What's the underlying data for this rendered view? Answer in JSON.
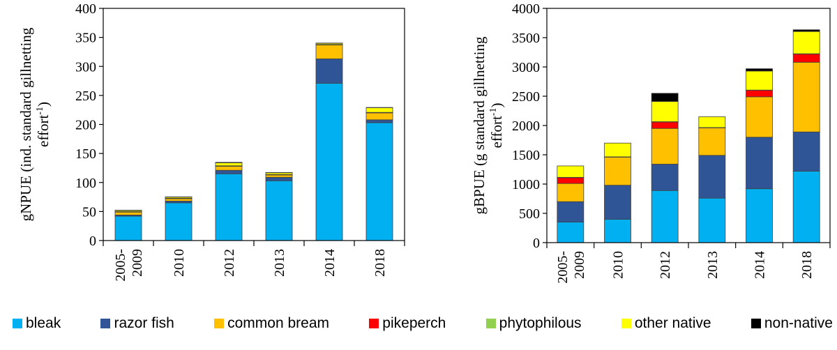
{
  "chart_data": [
    {
      "type": "bar",
      "stacked": true,
      "ylabel_lines": [
        "gNPUE (ind. standard gillnetting",
        "effort"
      ],
      "ylabel_superscript": "-1",
      "ylabel_close": ")",
      "ylim": [
        0,
        400
      ],
      "yticks": [
        0,
        50,
        100,
        150,
        200,
        250,
        300,
        350,
        400
      ],
      "categories": [
        [
          "2005-",
          "2009"
        ],
        [
          "2010"
        ],
        [
          "2012"
        ],
        [
          "2013"
        ],
        [
          "2014"
        ],
        [
          "2018"
        ]
      ],
      "series": [
        {
          "name": "bleak",
          "values": [
            42,
            65,
            115,
            103,
            271,
            203
          ]
        },
        {
          "name": "razor fish",
          "values": [
            2,
            3,
            6,
            6,
            42,
            5
          ]
        },
        {
          "name": "common bream",
          "values": [
            5,
            4,
            7,
            4,
            24,
            12
          ]
        },
        {
          "name": "pikeperch",
          "values": [
            0.5,
            0.5,
            0.5,
            0.5,
            0.5,
            0.5
          ]
        },
        {
          "name": "phytophilous",
          "values": [
            0.3,
            0.3,
            0.3,
            0.3,
            0.3,
            0.3
          ]
        },
        {
          "name": "other native",
          "values": [
            2,
            2,
            5,
            3,
            2,
            8
          ]
        },
        {
          "name": "non-native",
          "values": [
            0.5,
            0.5,
            1,
            0.5,
            0.5,
            0.5
          ]
        }
      ]
    },
    {
      "type": "bar",
      "stacked": true,
      "ylabel_lines": [
        "gBPUE (g standard gillnetting",
        "effort"
      ],
      "ylabel_superscript": "-1",
      "ylabel_close": ")",
      "ylim": [
        0,
        4000
      ],
      "yticks": [
        0,
        500,
        1000,
        1500,
        2000,
        2500,
        3000,
        3500,
        4000
      ],
      "categories": [
        [
          "2005-",
          "2009"
        ],
        [
          "2010"
        ],
        [
          "2012"
        ],
        [
          "2013"
        ],
        [
          "2014"
        ],
        [
          "2018"
        ]
      ],
      "series": [
        {
          "name": "bleak",
          "values": [
            350,
            400,
            890,
            760,
            920,
            1220
          ]
        },
        {
          "name": "razor fish",
          "values": [
            350,
            580,
            450,
            730,
            880,
            670
          ]
        },
        {
          "name": "common bream",
          "values": [
            310,
            480,
            610,
            470,
            690,
            1190
          ]
        },
        {
          "name": "pikeperch",
          "values": [
            100,
            0,
            110,
            0,
            110,
            140
          ]
        },
        {
          "name": "phytophilous",
          "values": [
            5,
            5,
            5,
            5,
            5,
            5
          ]
        },
        {
          "name": "other native",
          "values": [
            195,
            235,
            345,
            185,
            325,
            380
          ]
        },
        {
          "name": "non-native",
          "values": [
            0,
            0,
            140,
            0,
            40,
            30
          ]
        }
      ]
    }
  ],
  "legend": [
    {
      "name": "bleak",
      "color": "#00B0F0"
    },
    {
      "name": "razor fish",
      "color": "#2F5597"
    },
    {
      "name": "common bream",
      "color": "#FFC000"
    },
    {
      "name": "pikeperch",
      "color": "#FF0000"
    },
    {
      "name": "phytophilous",
      "color": "#92D050"
    },
    {
      "name": "other native",
      "color": "#FFFF00"
    },
    {
      "name": "non-native",
      "color": "#000000"
    }
  ]
}
